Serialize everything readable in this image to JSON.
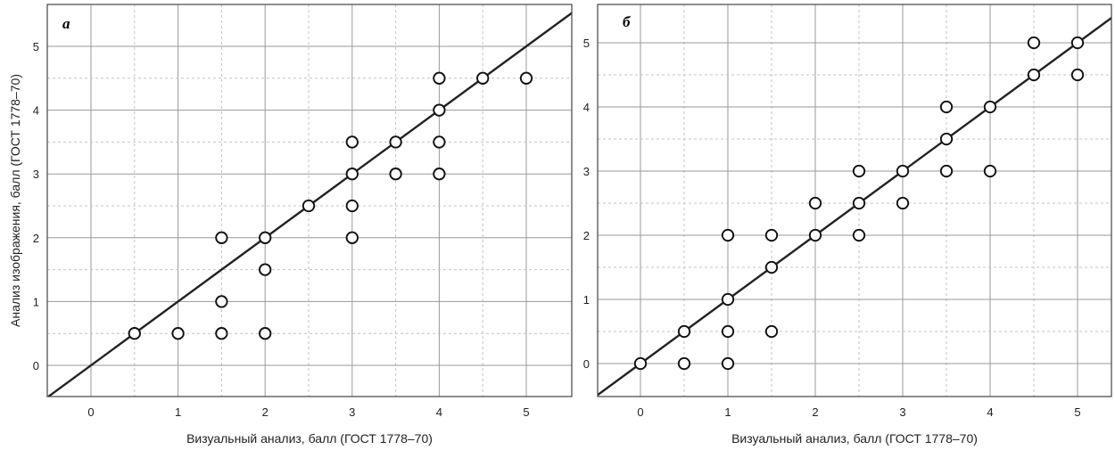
{
  "chart_data": [
    {
      "type": "scatter",
      "panel_label": "а",
      "xlabel": "Визуальный анализ, балл (ГОСТ 1778–70)",
      "ylabel": "Анализ изображения, балл (ГОСТ 1778–70)",
      "xlim": [
        -0.5,
        5.5
      ],
      "ylim": [
        -0.5,
        5.5
      ],
      "x_ticks": [
        "0",
        "1",
        "2",
        "3",
        "4",
        "5"
      ],
      "y_ticks": [
        "0",
        "1",
        "2",
        "3",
        "4",
        "5"
      ],
      "grid": "major solid, minor dashed",
      "reference_line": "y = x",
      "points": [
        [
          0.5,
          0.5
        ],
        [
          1,
          0.5
        ],
        [
          1.5,
          0.5
        ],
        [
          1.5,
          1
        ],
        [
          1.5,
          2
        ],
        [
          2,
          0.5
        ],
        [
          2,
          1.5
        ],
        [
          2,
          2
        ],
        [
          2.5,
          2.5
        ],
        [
          3,
          2
        ],
        [
          3,
          2.5
        ],
        [
          3,
          3
        ],
        [
          3,
          3.5
        ],
        [
          3.5,
          3
        ],
        [
          3.5,
          3.5
        ],
        [
          4,
          3
        ],
        [
          4,
          3.5
        ],
        [
          4,
          4
        ],
        [
          4,
          4.5
        ],
        [
          4.5,
          4.5
        ],
        [
          5,
          4.5
        ]
      ]
    },
    {
      "type": "scatter",
      "panel_label": "б",
      "xlabel": "Визуальный анализ, балл (ГОСТ 1778–70)",
      "ylabel": "",
      "xlim": [
        -0.5,
        5.4
      ],
      "ylim": [
        -0.5,
        5.4
      ],
      "x_ticks": [
        "0",
        "1",
        "2",
        "3",
        "4",
        "5"
      ],
      "y_ticks": [
        "0",
        "1",
        "2",
        "3",
        "4",
        "5"
      ],
      "grid": "major solid, minor dashed",
      "reference_line": "y = x",
      "points": [
        [
          0,
          0
        ],
        [
          0.5,
          0
        ],
        [
          0.5,
          0.5
        ],
        [
          1,
          0
        ],
        [
          1,
          0.5
        ],
        [
          1,
          1
        ],
        [
          1,
          2
        ],
        [
          1.5,
          0.5
        ],
        [
          1.5,
          1.5
        ],
        [
          1.5,
          2
        ],
        [
          2,
          2
        ],
        [
          2,
          2.5
        ],
        [
          2.5,
          2
        ],
        [
          2.5,
          2.5
        ],
        [
          2.5,
          3
        ],
        [
          3,
          2.5
        ],
        [
          3,
          3
        ],
        [
          3.5,
          3
        ],
        [
          3.5,
          3.5
        ],
        [
          3.5,
          4
        ],
        [
          4,
          3
        ],
        [
          4,
          4
        ],
        [
          4.5,
          4.5
        ],
        [
          4.5,
          5
        ],
        [
          5,
          4.5
        ],
        [
          5,
          5
        ]
      ]
    }
  ]
}
